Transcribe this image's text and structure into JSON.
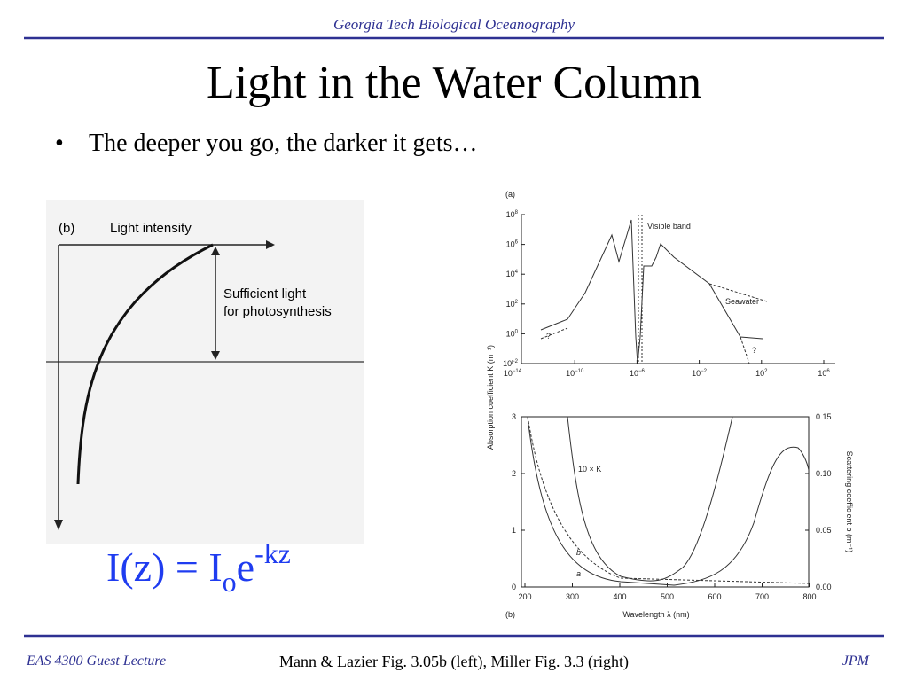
{
  "header": {
    "title": "Georgia Tech Biological Oceanography"
  },
  "slide": {
    "title": "Light in the Water Column",
    "bullets": [
      "The deeper you go, the darker it gets…"
    ]
  },
  "figure_left": {
    "panel": "(b)",
    "axis_label": "Light intensity",
    "annotation": [
      "Sufficient light",
      "for photosynthesis"
    ]
  },
  "equation": {
    "base": "I(z) = I",
    "subscript": "o",
    "e": "e",
    "superscript": "-kz"
  },
  "figure_right": {
    "panel_a": {
      "label": "(a)",
      "yticks": [
        {
          "base": "10",
          "exp": "8"
        },
        {
          "base": "10",
          "exp": "6"
        },
        {
          "base": "10",
          "exp": "4"
        },
        {
          "base": "10",
          "exp": "2"
        },
        {
          "base": "10",
          "exp": "0"
        },
        {
          "base": "10",
          "exp": "−2"
        }
      ],
      "xticks": [
        {
          "base": "10",
          "exp": "−14"
        },
        {
          "base": "10",
          "exp": "−10"
        },
        {
          "base": "10",
          "exp": "−6"
        },
        {
          "base": "10",
          "exp": "−2"
        },
        {
          "base": "10",
          "exp": "2"
        },
        {
          "base": "10",
          "exp": "6"
        }
      ],
      "annotations": [
        "Visible band",
        "Seawater",
        "?",
        "?"
      ]
    },
    "y_label": "Absorption coefficient K (m⁻¹)",
    "panel_b": {
      "label": "(b)",
      "yticks": [
        "3",
        "2",
        "1",
        "0"
      ],
      "y2ticks": [
        "0.15",
        "0.10",
        "0.05",
        "0.00"
      ],
      "xticks": [
        "200",
        "300",
        "400",
        "500",
        "600",
        "700",
        "800"
      ],
      "x_label": "Wavelength λ (nm)",
      "y2_label": "Scattering coefficient b (m⁻¹)",
      "annotations": [
        "10 × K",
        "b",
        "a"
      ]
    }
  },
  "footer": {
    "left": "EAS 4300 Guest Lecture",
    "center": "Mann & Lazier Fig. 3.05b (left), Miller Fig. 3.3 (right)",
    "right": "JPM"
  }
}
